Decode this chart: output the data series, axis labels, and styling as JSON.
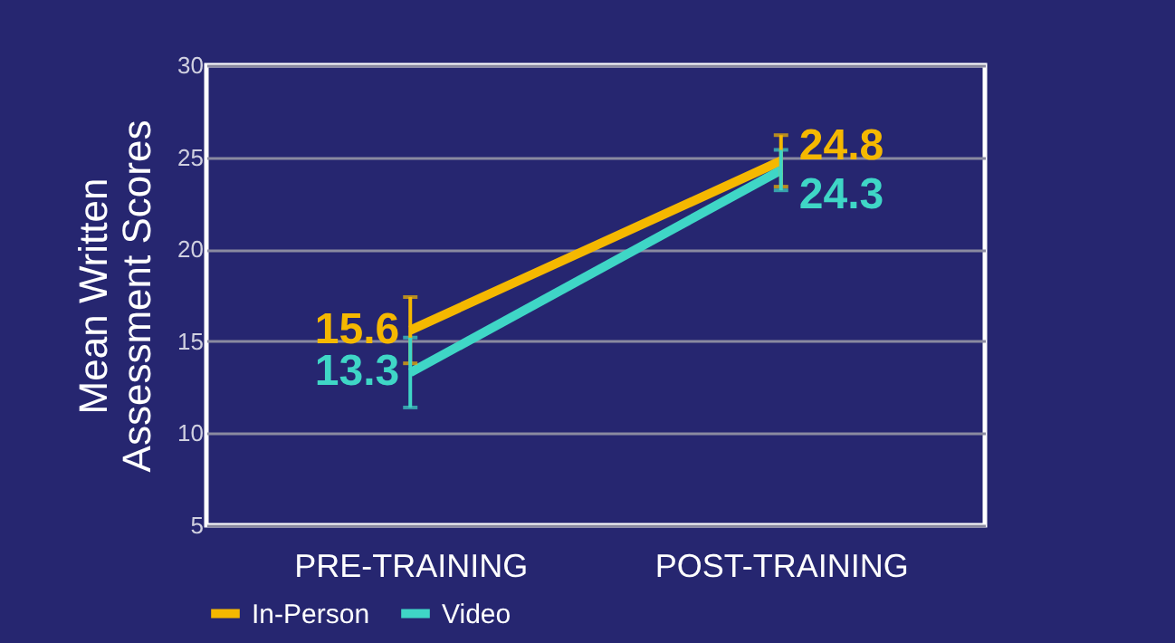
{
  "chart_data": {
    "type": "line",
    "ylabel": "Mean Written\nAssessment Scores",
    "categories": [
      "PRE-TRAINING",
      "POST-TRAINING"
    ],
    "series": [
      {
        "name": "In-Person",
        "color": "#f5b800",
        "values": [
          15.6,
          24.8
        ],
        "errors": [
          1.8,
          1.4
        ]
      },
      {
        "name": "Video",
        "color": "#3fd6c6",
        "values": [
          13.3,
          24.3
        ],
        "errors": [
          1.9,
          1.1
        ]
      }
    ],
    "ylim": [
      5,
      30
    ],
    "yticks": [
      5,
      10,
      15,
      20,
      25,
      30
    ],
    "grid": "y",
    "legend": "bottom",
    "data_labels": true,
    "marker": "none",
    "line_style": "solid"
  }
}
